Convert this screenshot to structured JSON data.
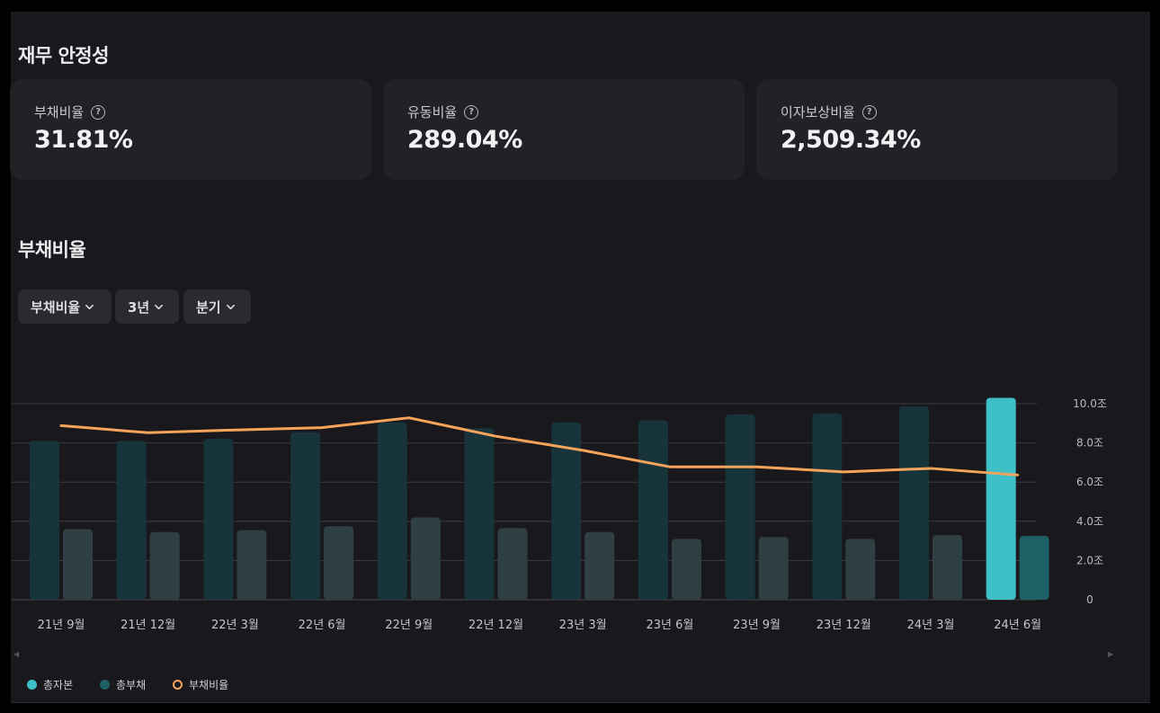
{
  "section_stability": {
    "title": "재무 안정성"
  },
  "cards": [
    {
      "label": "부채비율",
      "value": "31.81%",
      "help": "?"
    },
    {
      "label": "유동비율",
      "value": "289.04%",
      "help": "?"
    },
    {
      "label": "이자보상비율",
      "value": "2,509.34%",
      "help": "?"
    }
  ],
  "section_chart": {
    "title": "부채비율"
  },
  "filters": {
    "metric": "부채비율",
    "period": "3년",
    "interval": "분기"
  },
  "colors": {
    "equity": "#17343a",
    "equity_highlight": "#3fbfc8",
    "liabilities": "#2f4045",
    "liabilities_highlight": "#1f6066",
    "ratio_line": "#f6a45a",
    "grid": "#3a3b40"
  },
  "chart_data": {
    "type": "bar",
    "categories": [
      "21년 9월",
      "21년 12월",
      "22년 3월",
      "22년 6월",
      "22년 9월",
      "22년 12월",
      "23년 3월",
      "23년 6월",
      "23년 9월",
      "23년 12월",
      "24년 3월",
      "24년 6월"
    ],
    "series": [
      {
        "name": "총자본",
        "values": [
          8.1,
          8.1,
          8.2,
          8.55,
          9.05,
          8.75,
          9.05,
          9.15,
          9.45,
          9.5,
          9.85,
          10.3
        ]
      },
      {
        "name": "총부채",
        "values": [
          3.6,
          3.45,
          3.55,
          3.75,
          4.2,
          3.65,
          3.45,
          3.1,
          3.2,
          3.1,
          3.3,
          3.25
        ]
      },
      {
        "name": "부채비율",
        "values": [
          44.4,
          42.6,
          43.3,
          43.9,
          46.4,
          41.7,
          38.1,
          33.9,
          33.9,
          32.6,
          33.5,
          31.81
        ]
      }
    ],
    "ylabel": "",
    "ylim": [
      0,
      10
    ],
    "yticks": [
      {
        "v": 0,
        "label": "0"
      },
      {
        "v": 2,
        "label": "2.0조"
      },
      {
        "v": 4,
        "label": "4.0조"
      },
      {
        "v": 6,
        "label": "6.0조"
      },
      {
        "v": 8,
        "label": "8.0조"
      },
      {
        "v": 10,
        "label": "10.0조"
      }
    ],
    "ratio_axis_range": [
      0,
      50
    ],
    "highlight_index": 11,
    "legend": [
      "총자본",
      "총부채",
      "부채비율"
    ]
  }
}
